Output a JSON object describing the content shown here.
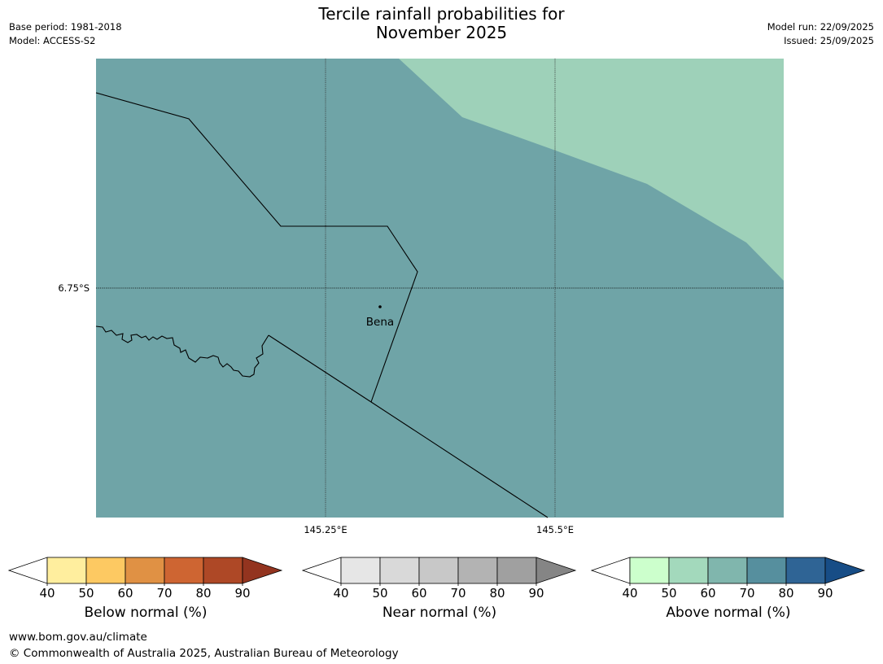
{
  "title_line1": "Tercile rainfall probabilities for",
  "title_line2": "November 2025",
  "header_left": [
    "Base period: 1981-2018",
    "Model: ACCESS-S2"
  ],
  "header_right": [
    "Model run: 22/09/2025",
    "Issued: 25/09/2025"
  ],
  "map": {
    "lat_label": "6.75°S",
    "lon_labels": [
      "145.25°E",
      "145.5°E"
    ],
    "place": "Bena",
    "fill_colors": {
      "above_50_60": "#9ed1b9",
      "above_60_70": "#6fa4a7"
    }
  },
  "colorbars": [
    {
      "label": "Below normal (%)",
      "ticks": [
        "40",
        "50",
        "60",
        "70",
        "80",
        "90"
      ],
      "colors": [
        "#ffee9e",
        "#fdc962",
        "#e09144",
        "#ce6532",
        "#ae4826"
      ],
      "extend_low": "#ffffff",
      "extend_high": "#93341f"
    },
    {
      "label": "Near normal (%)",
      "ticks": [
        "40",
        "50",
        "60",
        "70",
        "80",
        "90"
      ],
      "colors": [
        "#e6e6e6",
        "#d9d9d9",
        "#c8c8c8",
        "#b3b3b3",
        "#a0a0a0"
      ],
      "extend_low": "#ffffff",
      "extend_high": "#858585"
    },
    {
      "label": "Above normal (%)",
      "ticks": [
        "40",
        "50",
        "60",
        "70",
        "80",
        "90"
      ],
      "colors": [
        "#ccffcc",
        "#a3d9bc",
        "#80b6ad",
        "#568f9e",
        "#2f6495"
      ],
      "extend_low": "#ffffff",
      "extend_high": "#174d86"
    }
  ],
  "footer": [
    "www.bom.gov.au/climate",
    "© Commonwealth of Australia 2025, Australian Bureau of Meteorology"
  ]
}
